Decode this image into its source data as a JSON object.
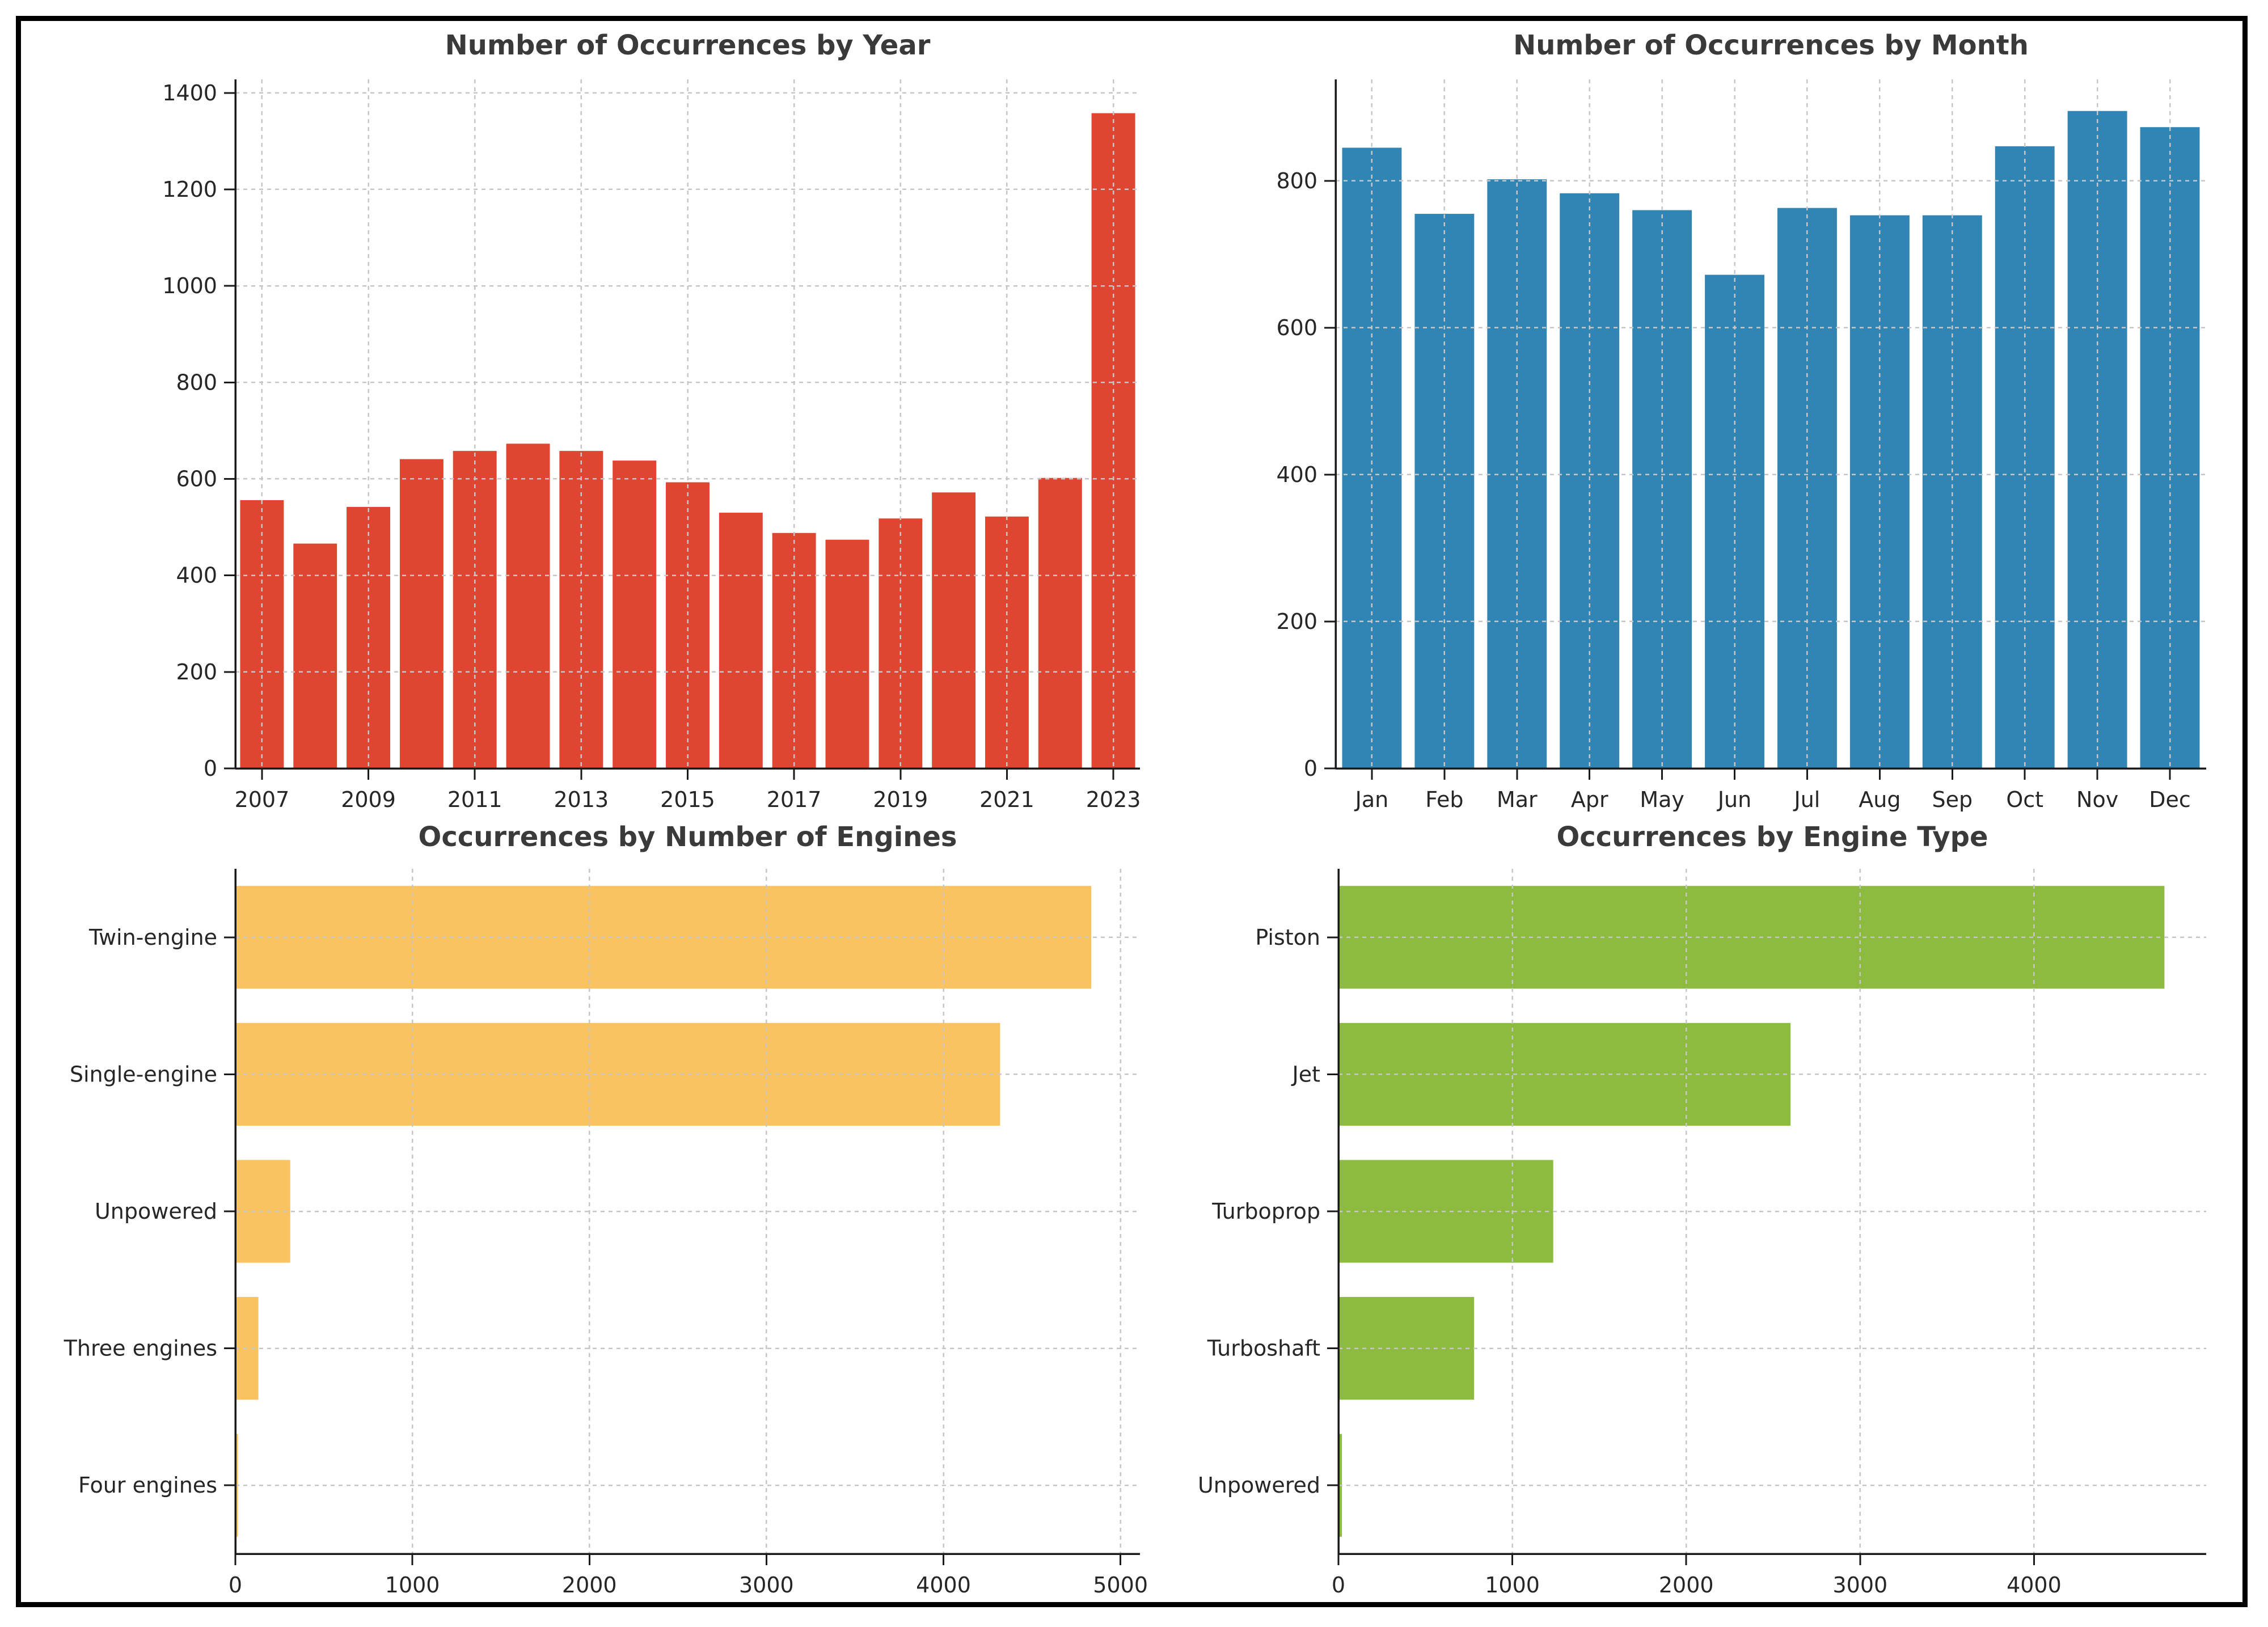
{
  "style": {
    "background": "#ffffff",
    "frame_color": "#000000",
    "grid_color": "#c6c6c6",
    "spine_color": "#1a1a1a",
    "text_color": "#262626",
    "title_color": "#3a3a3a"
  },
  "chart_data": [
    {
      "type": "bar",
      "orientation": "vertical",
      "title": "Number of Occurrences by Year",
      "bar_color": "#DF4631",
      "categories": [
        "2007",
        "2008",
        "2009",
        "2010",
        "2011",
        "2012",
        "2013",
        "2014",
        "2015",
        "2016",
        "2017",
        "2018",
        "2019",
        "2020",
        "2021",
        "2022",
        "2023"
      ],
      "values": [
        556,
        466,
        542,
        641,
        658,
        673,
        658,
        638,
        593,
        530,
        488,
        474,
        518,
        572,
        522,
        602,
        1358
      ],
      "ylim": [
        0,
        1428
      ],
      "yticks": [
        0,
        200,
        400,
        600,
        800,
        1000,
        1200,
        1400
      ],
      "xtick_label_step": 2,
      "grid": "dashed, drawn above bars",
      "legend": "none"
    },
    {
      "type": "bar",
      "orientation": "vertical",
      "title": "Number of Occurrences by Month",
      "bar_color": "#3185B5",
      "categories": [
        "Jan",
        "Feb",
        "Mar",
        "Apr",
        "May",
        "Jun",
        "Jul",
        "Aug",
        "Sep",
        "Oct",
        "Nov",
        "Dec"
      ],
      "values": [
        845,
        755,
        802,
        783,
        760,
        672,
        763,
        753,
        753,
        847,
        895,
        873
      ],
      "ylim": [
        0,
        938
      ],
      "yticks": [
        0,
        200,
        400,
        600,
        800
      ],
      "xtick_label_step": 1,
      "grid": "dashed, drawn above bars",
      "legend": "none"
    },
    {
      "type": "bar",
      "orientation": "horizontal",
      "title": "Occurrences by Number of Engines",
      "bar_color": "#F9C362",
      "categories": [
        "Twin-engine",
        "Single-engine",
        "Unpowered",
        "Three engines",
        "Four engines"
      ],
      "values": [
        4835,
        4320,
        310,
        130,
        15
      ],
      "xlim": [
        0,
        5110
      ],
      "xticks": [
        0,
        1000,
        2000,
        3000,
        4000,
        5000
      ],
      "grid": "dashed, drawn above bars",
      "legend": "none"
    },
    {
      "type": "bar",
      "orientation": "horizontal",
      "title": "Occurrences by Engine Type",
      "bar_color": "#8CBB40",
      "categories": [
        "Piston",
        "Jet",
        "Turboprop",
        "Turboshaft",
        "Unpowered"
      ],
      "values": [
        4750,
        2600,
        1235,
        780,
        20
      ],
      "xlim": [
        0,
        4990
      ],
      "xticks": [
        0,
        1000,
        2000,
        3000,
        4000
      ],
      "grid": "dashed, drawn above bars",
      "legend": "none"
    }
  ]
}
